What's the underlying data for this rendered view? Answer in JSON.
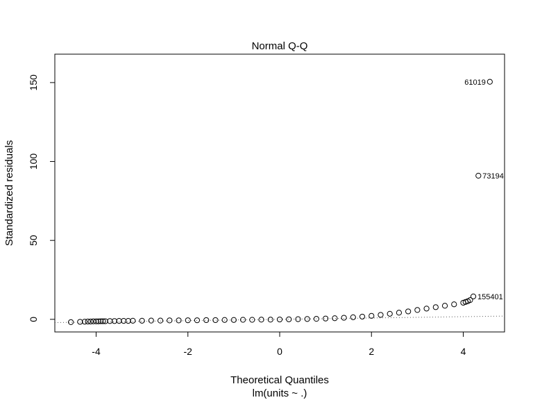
{
  "chart_data": {
    "type": "scatter",
    "title": "Normal Q-Q",
    "xlabel": "Theoretical Quantiles",
    "subtitle": "lm(units ~ .)",
    "ylabel": "Standardized residuals",
    "xlim": [
      -4.9,
      4.9
    ],
    "ylim": [
      -8,
      168
    ],
    "xticks": [
      -4,
      -2,
      0,
      2,
      4
    ],
    "yticks": [
      0,
      50,
      100,
      150
    ],
    "grid": false,
    "reference_line": {
      "slope": 0.42,
      "intercept": 0.0,
      "style": "dotted"
    },
    "points": [
      {
        "x": -4.55,
        "y": -1.8
      },
      {
        "x": -4.35,
        "y": -1.6
      },
      {
        "x": -4.25,
        "y": -1.5
      },
      {
        "x": -4.18,
        "y": -1.4
      },
      {
        "x": -4.12,
        "y": -1.4
      },
      {
        "x": -4.06,
        "y": -1.3
      },
      {
        "x": -4.0,
        "y": -1.3
      },
      {
        "x": -3.95,
        "y": -1.3
      },
      {
        "x": -3.9,
        "y": -1.2
      },
      {
        "x": -3.85,
        "y": -1.2
      },
      {
        "x": -3.8,
        "y": -1.2
      },
      {
        "x": -3.7,
        "y": -1.1
      },
      {
        "x": -3.6,
        "y": -1.1
      },
      {
        "x": -3.5,
        "y": -1.0
      },
      {
        "x": -3.4,
        "y": -1.0
      },
      {
        "x": -3.3,
        "y": -1.0
      },
      {
        "x": -3.2,
        "y": -0.9
      },
      {
        "x": -3.0,
        "y": -0.9
      },
      {
        "x": -2.8,
        "y": -0.8
      },
      {
        "x": -2.6,
        "y": -0.8
      },
      {
        "x": -2.4,
        "y": -0.7
      },
      {
        "x": -2.2,
        "y": -0.7
      },
      {
        "x": -2.0,
        "y": -0.6
      },
      {
        "x": -1.8,
        "y": -0.6
      },
      {
        "x": -1.6,
        "y": -0.5
      },
      {
        "x": -1.4,
        "y": -0.5
      },
      {
        "x": -1.2,
        "y": -0.4
      },
      {
        "x": -1.0,
        "y": -0.4
      },
      {
        "x": -0.8,
        "y": -0.3
      },
      {
        "x": -0.6,
        "y": -0.3
      },
      {
        "x": -0.4,
        "y": -0.2
      },
      {
        "x": -0.2,
        "y": -0.2
      },
      {
        "x": 0.0,
        "y": -0.1
      },
      {
        "x": 0.2,
        "y": 0.0
      },
      {
        "x": 0.4,
        "y": 0.1
      },
      {
        "x": 0.6,
        "y": 0.2
      },
      {
        "x": 0.8,
        "y": 0.3
      },
      {
        "x": 1.0,
        "y": 0.5
      },
      {
        "x": 1.2,
        "y": 0.7
      },
      {
        "x": 1.4,
        "y": 1.0
      },
      {
        "x": 1.6,
        "y": 1.3
      },
      {
        "x": 1.8,
        "y": 1.7
      },
      {
        "x": 2.0,
        "y": 2.2
      },
      {
        "x": 2.2,
        "y": 2.8
      },
      {
        "x": 2.4,
        "y": 3.5
      },
      {
        "x": 2.6,
        "y": 4.2
      },
      {
        "x": 2.8,
        "y": 5.0
      },
      {
        "x": 3.0,
        "y": 5.9
      },
      {
        "x": 3.2,
        "y": 6.8
      },
      {
        "x": 3.4,
        "y": 7.7
      },
      {
        "x": 3.6,
        "y": 8.6
      },
      {
        "x": 3.8,
        "y": 9.5
      },
      {
        "x": 4.0,
        "y": 10.5
      },
      {
        "x": 4.05,
        "y": 11.0
      },
      {
        "x": 4.1,
        "y": 11.5
      },
      {
        "x": 4.15,
        "y": 12.2
      },
      {
        "x": 4.22,
        "y": 14.5
      },
      {
        "x": 4.33,
        "y": 91.0
      },
      {
        "x": 4.58,
        "y": 150.5
      }
    ],
    "annotations": [
      {
        "label": "61019",
        "x": 4.58,
        "y": 150.5,
        "side": "left"
      },
      {
        "label": "73194",
        "x": 4.33,
        "y": 91.0,
        "side": "right"
      },
      {
        "label": "155401",
        "x": 4.22,
        "y": 14.5,
        "side": "right"
      }
    ]
  }
}
